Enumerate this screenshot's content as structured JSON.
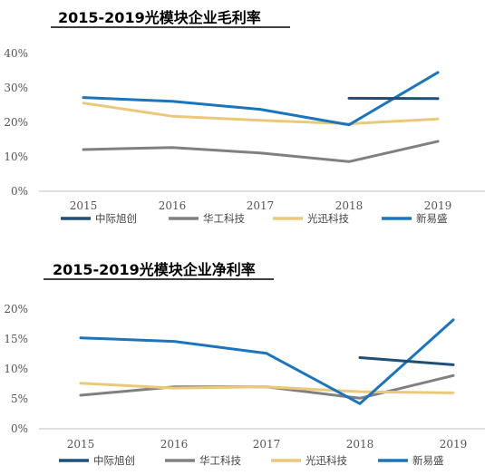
{
  "chart_data": [
    {
      "type": "line",
      "title": "2015-2019光模块企业毛利率",
      "categories": [
        "2015",
        "2016",
        "2017",
        "2018",
        "2019"
      ],
      "ylim": [
        0,
        40
      ],
      "y_ticks": [
        "0%",
        "10%",
        "20%",
        "30%",
        "40%"
      ],
      "y_tick_values": [
        0,
        10,
        20,
        30,
        40
      ],
      "grid": false,
      "legend_position": "bottom",
      "series": [
        {
          "name": "中际旭创",
          "color": "#1f4e79",
          "values": [
            null,
            null,
            null,
            27.0,
            26.9
          ]
        },
        {
          "name": "华工科技",
          "color": "#808080",
          "values": [
            12.1,
            12.7,
            11.1,
            8.6,
            14.5
          ]
        },
        {
          "name": "光迅科技",
          "color": "#ecc97a",
          "values": [
            25.6,
            21.8,
            20.6,
            19.6,
            21.0
          ]
        },
        {
          "name": "新易盛",
          "color": "#1b75bc",
          "values": [
            27.2,
            26.1,
            23.8,
            19.3,
            34.5
          ]
        }
      ]
    },
    {
      "type": "line",
      "title": "2015-2019光模块企业净利率",
      "categories": [
        "2015",
        "2016",
        "2017",
        "2018",
        "2019"
      ],
      "ylim": [
        0,
        20
      ],
      "y_ticks": [
        "0%",
        "5%",
        "10%",
        "15%",
        "20%"
      ],
      "y_tick_values": [
        0,
        5,
        10,
        15,
        20
      ],
      "grid": false,
      "legend_position": "bottom",
      "series": [
        {
          "name": "中际旭创",
          "color": "#1f4e79",
          "values": [
            null,
            null,
            null,
            11.9,
            10.7
          ]
        },
        {
          "name": "华工科技",
          "color": "#808080",
          "values": [
            5.6,
            7.0,
            7.0,
            5.1,
            8.9
          ]
        },
        {
          "name": "光迅科技",
          "color": "#ecc97a",
          "values": [
            7.6,
            6.8,
            7.0,
            6.2,
            6.0
          ]
        },
        {
          "name": "新易盛",
          "color": "#1b75bc",
          "values": [
            15.2,
            14.6,
            12.6,
            4.2,
            18.2
          ]
        }
      ]
    }
  ]
}
